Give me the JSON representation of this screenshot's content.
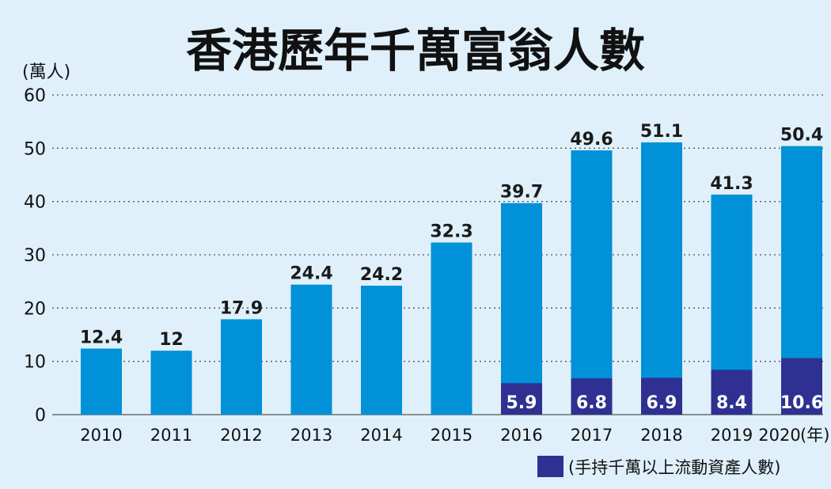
{
  "chart_data": {
    "type": "bar",
    "stacked": true,
    "title": "香港歷年千萬富翁人數",
    "ylabel": "(萬人)",
    "xlabel_suffix": "(年)",
    "ylim": [
      0,
      60
    ],
    "yticks": [
      0,
      10,
      20,
      30,
      40,
      50,
      60
    ],
    "grid": true,
    "categories": [
      "2010",
      "2011",
      "2012",
      "2013",
      "2014",
      "2015",
      "2016",
      "2017",
      "2018",
      "2019",
      "2020"
    ],
    "totals": [
      12.4,
      12,
      17.9,
      24.4,
      24.2,
      32.3,
      39.7,
      49.6,
      51.1,
      41.3,
      50.4
    ],
    "total_labels": [
      "12.4",
      "12",
      "17.9",
      "24.4",
      "24.2",
      "32.3",
      "39.7",
      "49.6",
      "51.1",
      "41.3",
      "50.4"
    ],
    "series": [
      {
        "name": "手持千萬以上流動資產人數",
        "legend_label": "(手持千萬以上流動資產人數)",
        "color": "#2e3192",
        "values": [
          null,
          null,
          null,
          null,
          null,
          null,
          5.9,
          6.8,
          6.9,
          8.4,
          10.6
        ],
        "labels": [
          null,
          null,
          null,
          null,
          null,
          null,
          "5.9",
          "6.8",
          "6.9",
          "8.4",
          "10.6"
        ]
      }
    ],
    "total_color": "#0091d8",
    "legend_position": "bottom-right"
  }
}
